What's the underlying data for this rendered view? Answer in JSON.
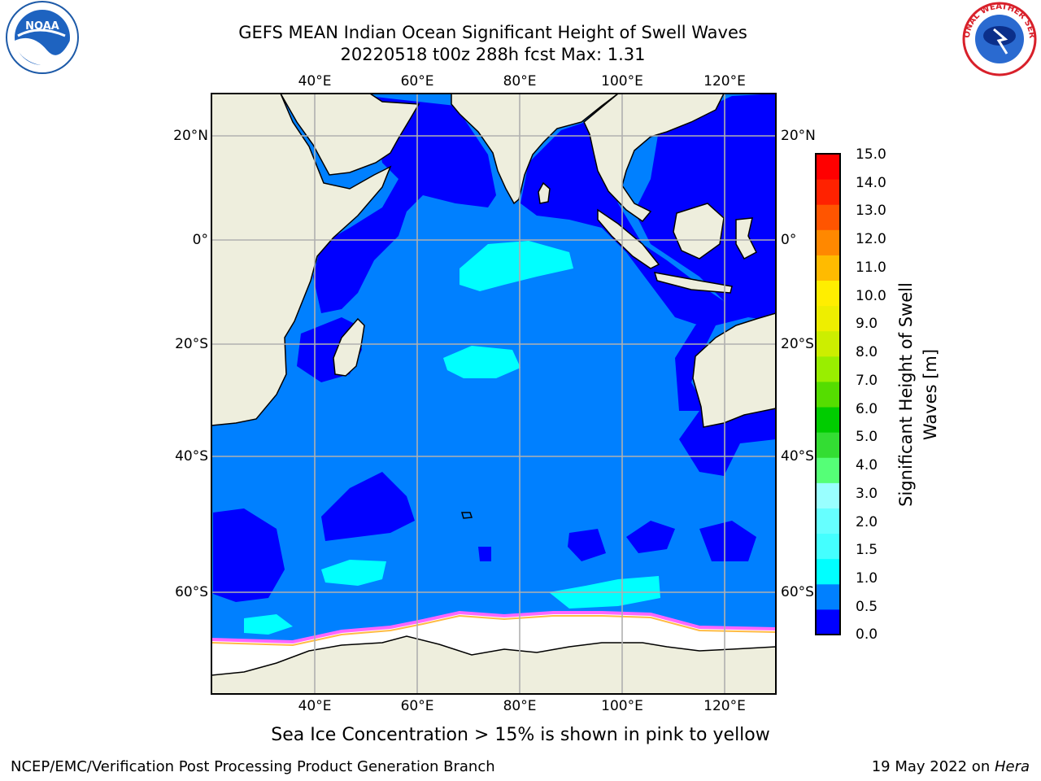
{
  "header": {
    "title_line1": "GEFS MEAN Indian Ocean Significant Height of Swell Waves",
    "title_line2": "20220518 t00z 288h fcst   Max: 1.31"
  },
  "logos": {
    "left": "NOAA",
    "right": "NATIONAL WEATHER SERVICE"
  },
  "map": {
    "lon_ticks": [
      "40°E",
      "60°E",
      "80°E",
      "100°E",
      "120°E"
    ],
    "lat_ticks": [
      "20°N",
      "0°",
      "20°S",
      "40°S",
      "60°S"
    ],
    "colors": {
      "land": "#eeeedd",
      "ocean_main": "#0080ff",
      "ocean_low": "#0000ff",
      "ocean_mid": "#00ffff",
      "ice": "#ffffff",
      "ice_edge_pink": "#ff66ff",
      "ice_edge_orange": "#ffbb44",
      "grid": "#b0b0b0"
    }
  },
  "colorbar": {
    "label": "Significant Height of Swell Waves [m]",
    "ticks": [
      "15.0",
      "14.0",
      "13.0",
      "12.0",
      "11.0",
      "10.0",
      "9.0",
      "8.0",
      "7.0",
      "6.0",
      "5.0",
      "4.0",
      "3.0",
      "2.0",
      "1.5",
      "1.0",
      "0.5",
      "0.0"
    ],
    "colors": [
      "#0000ff",
      "#0080ff",
      "#00ffff",
      "#44ffff",
      "#66ffff",
      "#99ffff",
      "#55ff77",
      "#33dd33",
      "#00cc00",
      "#55dd00",
      "#99ee00",
      "#ccee00",
      "#eeee00",
      "#ffee00",
      "#ffbb00",
      "#ff8800",
      "#ff5500",
      "#ff2200",
      "#ff0000"
    ]
  },
  "footer": {
    "caption": "Sea Ice Concentration > 15% is shown in pink to yellow",
    "credit": "NCEP/EMC/Verification Post Processing Product Generation Branch",
    "date_prefix": "19 May 2022 on ",
    "date_machine": "Hera"
  }
}
